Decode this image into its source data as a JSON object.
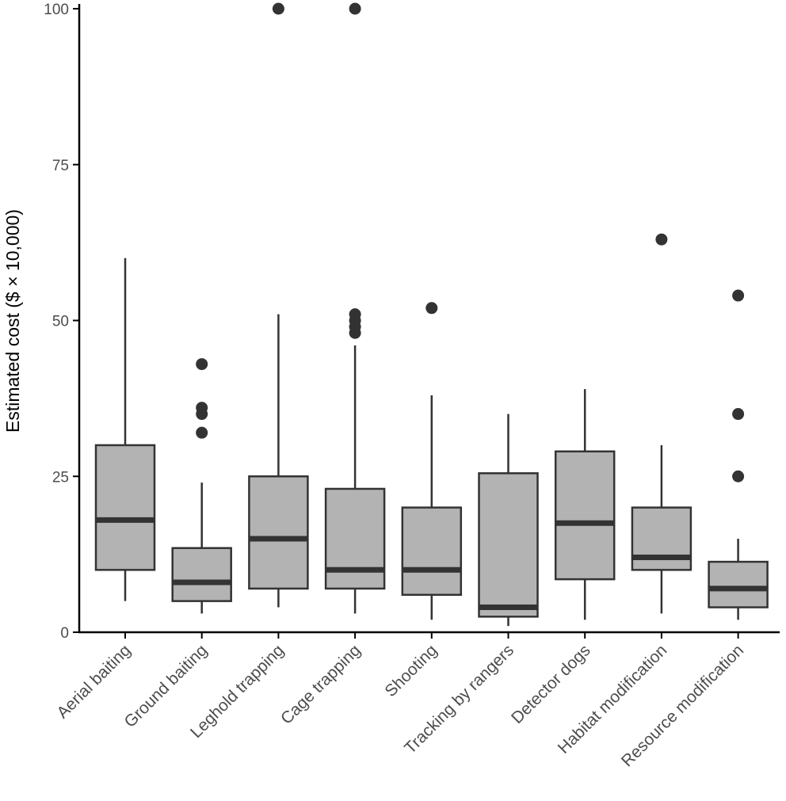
{
  "chart_data": {
    "type": "boxplot",
    "title": "",
    "xlabel": "",
    "ylabel": "Estimated cost ($ × 10,000)",
    "ylim": [
      0,
      100
    ],
    "yticks": [
      0,
      25,
      50,
      75,
      100
    ],
    "grid": false,
    "colors": {
      "box_fill": "#b3b3b3",
      "stroke": "#333333",
      "outlier": "#333333",
      "axis": "#000000",
      "tick_text": "#4d4d4d"
    },
    "categories": [
      "Aerial baiting",
      "Ground baiting",
      "Leghold trapping",
      "Cage trapping",
      "Shooting",
      "Tracking by rangers",
      "Detector dogs",
      "Habitat modification",
      "Resource modification"
    ],
    "boxes": [
      {
        "category": "Aerial baiting",
        "whisker_low": 5,
        "q1": 10,
        "median": 18,
        "q3": 30,
        "whisker_high": 60,
        "outliers": []
      },
      {
        "category": "Ground baiting",
        "whisker_low": 3,
        "q1": 5,
        "median": 8,
        "q3": 13.5,
        "whisker_high": 24,
        "outliers": [
          32,
          35,
          36,
          43
        ]
      },
      {
        "category": "Leghold trapping",
        "whisker_low": 4,
        "q1": 7,
        "median": 15,
        "q3": 25,
        "whisker_high": 51,
        "outliers": [
          100
        ]
      },
      {
        "category": "Cage trapping",
        "whisker_low": 3,
        "q1": 7,
        "median": 10,
        "q3": 23,
        "whisker_high": 46,
        "outliers": [
          48,
          49,
          50,
          51,
          100
        ]
      },
      {
        "category": "Shooting",
        "whisker_low": 2,
        "q1": 6,
        "median": 10,
        "q3": 20,
        "whisker_high": 38,
        "outliers": [
          52
        ]
      },
      {
        "category": "Tracking by rangers",
        "whisker_low": 1,
        "q1": 2.5,
        "median": 4,
        "q3": 25.5,
        "whisker_high": 35,
        "outliers": []
      },
      {
        "category": "Detector dogs",
        "whisker_low": 2,
        "q1": 8.5,
        "median": 17.5,
        "q3": 29,
        "whisker_high": 39,
        "outliers": []
      },
      {
        "category": "Habitat modification",
        "whisker_low": 3,
        "q1": 10,
        "median": 12,
        "q3": 20,
        "whisker_high": 30,
        "outliers": [
          63
        ]
      },
      {
        "category": "Resource modification",
        "whisker_low": 2,
        "q1": 4,
        "median": 7,
        "q3": 11.3,
        "whisker_high": 15,
        "outliers": [
          25,
          35,
          54
        ]
      }
    ]
  }
}
